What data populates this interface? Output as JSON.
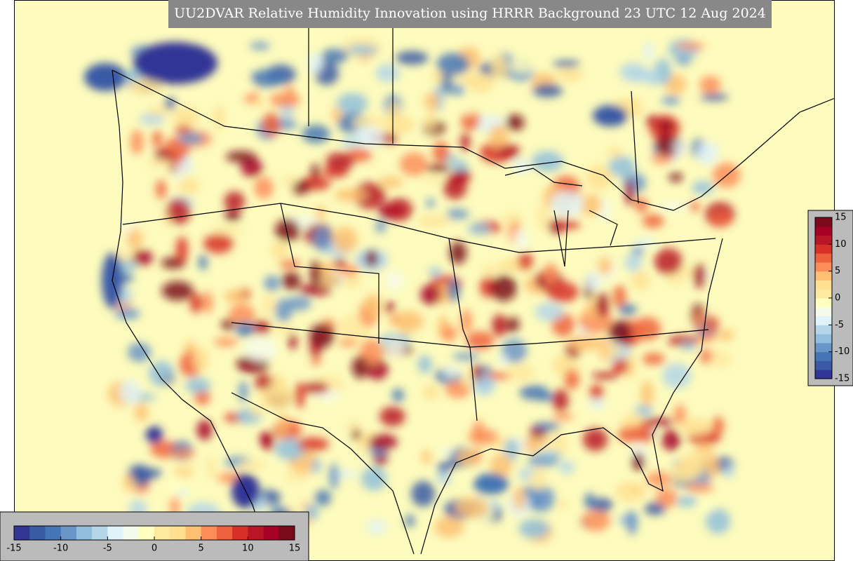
{
  "title": "UU2DVAR Relative Humidity Innovation using HRRR Background 23 UTC 12 Aug 2024",
  "colorbar": {
    "range": [
      -15,
      15
    ],
    "ticks": [
      -15,
      -10,
      -5,
      0,
      5,
      10,
      15
    ],
    "colors": [
      "#313695",
      "#3a5aa5",
      "#4575b4",
      "#6a95c8",
      "#91bfdb",
      "#b4d6e8",
      "#e0f3f8",
      "#f4fbea",
      "#ffffbf",
      "#fee9a0",
      "#fee090",
      "#fdbf71",
      "#fc8d59",
      "#ee613d",
      "#d73027",
      "#b81527",
      "#a50026",
      "#7a0a1a"
    ]
  }
}
